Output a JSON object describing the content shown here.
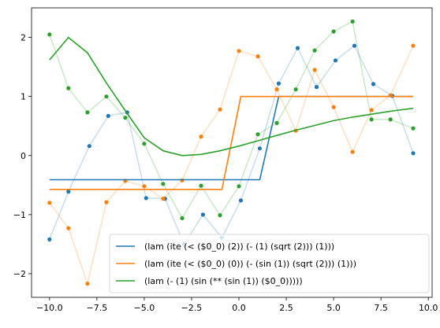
{
  "chart_data": {
    "type": "line",
    "title": "",
    "xlabel": "",
    "ylabel": "",
    "xlim": [
      -10.95,
      10.2
    ],
    "ylim": [
      -2.4,
      2.5
    ],
    "grid": false,
    "legend_position": "lower-right",
    "xticks": [
      -10.0,
      -7.5,
      -5.0,
      -2.5,
      0.0,
      2.5,
      5.0,
      7.5,
      10.0
    ],
    "xtick_labels": [
      "−10.0",
      "−7.5",
      "−5.0",
      "−2.5",
      "0.0",
      "2.5",
      "5.0",
      "7.5",
      "10.0"
    ],
    "yticks": [
      2,
      1,
      0,
      -1,
      -2
    ],
    "ytick_labels": [
      "2",
      "1",
      "0",
      "−1",
      "−2"
    ],
    "x": [
      -10,
      -9,
      -8,
      -7,
      -6,
      -5,
      -4,
      -3,
      -2,
      -1,
      0,
      1,
      2,
      3,
      4,
      5,
      6,
      7,
      8,
      9
    ],
    "point_series": [
      {
        "color": "#1f77b4",
        "points": [
          [
            -10,
            -1.42
          ],
          [
            -9,
            -0.61
          ],
          [
            -7.9,
            0.16
          ],
          [
            -6.9,
            0.67
          ],
          [
            -5.9,
            0.73
          ],
          [
            -4.9,
            -0.72
          ],
          [
            -3.9,
            -0.73
          ],
          [
            -2.9,
            -1.5
          ],
          [
            -1.9,
            -1
          ],
          [
            -0.9,
            -1.39
          ],
          [
            0.1,
            -0.76
          ],
          [
            1.1,
            0.12
          ],
          [
            2.1,
            1.22
          ],
          [
            3.1,
            1.82
          ],
          [
            4.1,
            1.16
          ],
          [
            5.1,
            1.61
          ],
          [
            6.1,
            1.86
          ],
          [
            7.1,
            1.21
          ],
          [
            8.1,
            1.01
          ],
          [
            9.2,
            0.04
          ]
        ]
      },
      {
        "color": "#ff7f0e",
        "points": [
          [
            -10,
            -0.8
          ],
          [
            -9,
            -1.23
          ],
          [
            -8,
            -2.17
          ],
          [
            -7,
            -0.79
          ],
          [
            -6,
            -0.43
          ],
          [
            -5,
            -0.52
          ],
          [
            -4,
            -0.73
          ],
          [
            -3,
            -0.42
          ],
          [
            -2,
            0.32
          ],
          [
            -1,
            0.78
          ],
          [
            0,
            1.77
          ],
          [
            1,
            1.68
          ],
          [
            2,
            1.12
          ],
          [
            3,
            0.42
          ],
          [
            4,
            1.45
          ],
          [
            5,
            0.82
          ],
          [
            6,
            0.06
          ],
          [
            7,
            0.77
          ],
          [
            8,
            1.02
          ],
          [
            9.2,
            1.86
          ]
        ]
      },
      {
        "color": "#2ca02c",
        "points": [
          [
            -10,
            2.05
          ],
          [
            -9,
            1.14
          ],
          [
            -8,
            0.73
          ],
          [
            -7,
            1
          ],
          [
            -6,
            0.64
          ],
          [
            -5,
            0.2
          ],
          [
            -4,
            -0.48
          ],
          [
            -3,
            -1.06
          ],
          [
            -2,
            -0.51
          ],
          [
            -1,
            -1.01
          ],
          [
            0,
            -0.52
          ],
          [
            1,
            0.36
          ],
          [
            2,
            0.55
          ],
          [
            3,
            1.12
          ],
          [
            4,
            1.78
          ],
          [
            5,
            2.1
          ],
          [
            6,
            2.27
          ],
          [
            7,
            0.61
          ],
          [
            8,
            0.61
          ],
          [
            9.2,
            0.46
          ]
        ]
      }
    ],
    "series": [
      {
        "name": "(lam (ite (< ($0_0) (2)) (- (1) (sqrt (2))) (1)))",
        "color": "#1f77b4",
        "points": [
          [
            -10,
            -0.41
          ],
          [
            1.1,
            -0.41
          ],
          [
            2.1,
            1.0
          ],
          [
            9.2,
            1.0
          ]
        ]
      },
      {
        "name": "(lam (ite (< ($0_0) (0)) (- (sin (1)) (sqrt (2))) (1)))",
        "color": "#ff7f0e",
        "points": [
          [
            -10,
            -0.573
          ],
          [
            -0.9,
            -0.573
          ],
          [
            0.1,
            1.0
          ],
          [
            9.2,
            1.0
          ]
        ]
      },
      {
        "name": "(lam (- (1) (sin (** (sin (1)) ($0_0)))))",
        "color": "#2ca02c",
        "points": [
          [
            -10,
            1.62
          ],
          [
            -9,
            2.0
          ],
          [
            -8,
            1.74
          ],
          [
            -7,
            1.23
          ],
          [
            -6,
            0.76
          ],
          [
            -5,
            0.3
          ],
          [
            -4,
            0.08
          ],
          [
            -3,
            0.0
          ],
          [
            -2,
            0.02
          ],
          [
            -1,
            0.08
          ],
          [
            0,
            0.16
          ],
          [
            1,
            0.25
          ],
          [
            2,
            0.34
          ],
          [
            3,
            0.43
          ],
          [
            4,
            0.51
          ],
          [
            5,
            0.59
          ],
          [
            6,
            0.65
          ],
          [
            7,
            0.7
          ],
          [
            8,
            0.75
          ],
          [
            9.2,
            0.8
          ]
        ]
      }
    ]
  }
}
